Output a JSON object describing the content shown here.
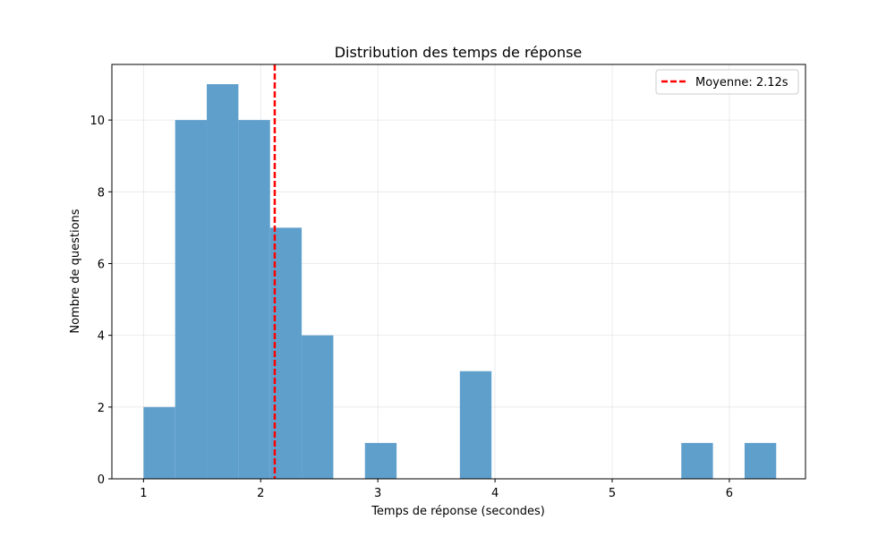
{
  "chart_data": {
    "type": "bar",
    "title": "Distribution des temps de réponse",
    "xlabel": "Temps de réponse (secondes)",
    "ylabel": "Nombre de questions",
    "xlim": [
      0.73,
      6.65
    ],
    "ylim": [
      0,
      11.55
    ],
    "xticks": [
      1,
      2,
      3,
      4,
      5,
      6
    ],
    "yticks": [
      0,
      2,
      4,
      6,
      8,
      10
    ],
    "grid": true,
    "legend_position": "top-right",
    "bar_color": "#5f9fcc",
    "bins": [
      {
        "x0": 1.0,
        "x1": 1.27,
        "count": 2
      },
      {
        "x0": 1.27,
        "x1": 1.54,
        "count": 10
      },
      {
        "x0": 1.54,
        "x1": 1.81,
        "count": 11
      },
      {
        "x0": 1.81,
        "x1": 2.08,
        "count": 10
      },
      {
        "x0": 2.08,
        "x1": 2.35,
        "count": 7
      },
      {
        "x0": 2.35,
        "x1": 2.62,
        "count": 4
      },
      {
        "x0": 2.62,
        "x1": 2.89,
        "count": 0
      },
      {
        "x0": 2.89,
        "x1": 3.16,
        "count": 1
      },
      {
        "x0": 3.16,
        "x1": 3.43,
        "count": 0
      },
      {
        "x0": 3.43,
        "x1": 3.7,
        "count": 0
      },
      {
        "x0": 3.7,
        "x1": 3.97,
        "count": 3
      },
      {
        "x0": 3.97,
        "x1": 4.24,
        "count": 0
      },
      {
        "x0": 4.24,
        "x1": 4.51,
        "count": 0
      },
      {
        "x0": 4.51,
        "x1": 4.78,
        "count": 0
      },
      {
        "x0": 4.78,
        "x1": 5.05,
        "count": 0
      },
      {
        "x0": 5.05,
        "x1": 5.32,
        "count": 0
      },
      {
        "x0": 5.32,
        "x1": 5.59,
        "count": 0
      },
      {
        "x0": 5.59,
        "x1": 5.86,
        "count": 1
      },
      {
        "x0": 5.86,
        "x1": 6.13,
        "count": 0
      },
      {
        "x0": 6.13,
        "x1": 6.4,
        "count": 1
      }
    ],
    "mean_line": {
      "value": 2.12,
      "label": "Moyenne: 2.12s",
      "color": "#ff0000"
    }
  }
}
